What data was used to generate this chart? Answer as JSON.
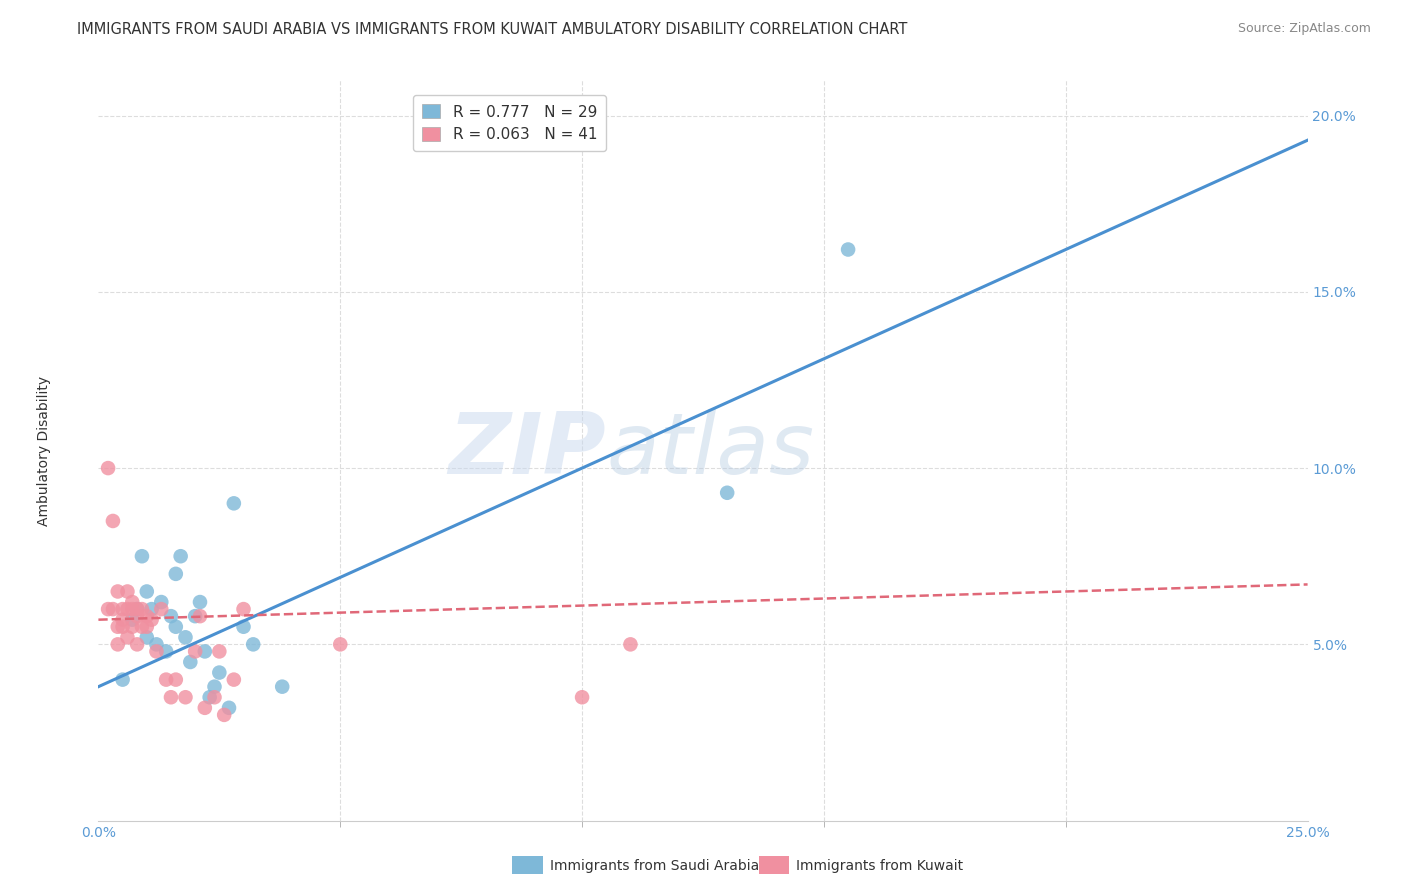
{
  "title": "IMMIGRANTS FROM SAUDI ARABIA VS IMMIGRANTS FROM KUWAIT AMBULATORY DISABILITY CORRELATION CHART",
  "source": "Source: ZipAtlas.com",
  "ylabel": "Ambulatory Disability",
  "xlim": [
    0.0,
    0.25
  ],
  "ylim": [
    0.0,
    0.21
  ],
  "xticks_major": [
    0.0,
    0.25
  ],
  "xticks_minor": [
    0.05,
    0.1,
    0.15,
    0.2
  ],
  "yticks": [
    0.05,
    0.1,
    0.15,
    0.2
  ],
  "xtick_labels_major": [
    "0.0%",
    "25.0%"
  ],
  "ytick_labels": [
    "5.0%",
    "10.0%",
    "15.0%",
    "20.0%"
  ],
  "background_color": "#ffffff",
  "grid_color": "#dddddd",
  "watermark_zip": "ZIP",
  "watermark_atlas": "atlas",
  "legend_entries": [
    {
      "label": "R = 0.777   N = 29",
      "color": "#a8c8e8"
    },
    {
      "label": "R = 0.063   N = 41",
      "color": "#f4a0b4"
    }
  ],
  "saudi_scatter_x": [
    0.005,
    0.007,
    0.008,
    0.009,
    0.01,
    0.01,
    0.011,
    0.012,
    0.013,
    0.014,
    0.015,
    0.016,
    0.016,
    0.017,
    0.018,
    0.019,
    0.02,
    0.021,
    0.022,
    0.023,
    0.024,
    0.025,
    0.027,
    0.028,
    0.03,
    0.032,
    0.038,
    0.13,
    0.155
  ],
  "saudi_scatter_y": [
    0.04,
    0.057,
    0.06,
    0.075,
    0.052,
    0.065,
    0.06,
    0.05,
    0.062,
    0.048,
    0.058,
    0.055,
    0.07,
    0.075,
    0.052,
    0.045,
    0.058,
    0.062,
    0.048,
    0.035,
    0.038,
    0.042,
    0.032,
    0.09,
    0.055,
    0.05,
    0.038,
    0.093,
    0.162
  ],
  "kuwait_scatter_x": [
    0.002,
    0.002,
    0.003,
    0.003,
    0.004,
    0.004,
    0.004,
    0.005,
    0.005,
    0.005,
    0.006,
    0.006,
    0.006,
    0.007,
    0.007,
    0.007,
    0.008,
    0.008,
    0.008,
    0.009,
    0.009,
    0.01,
    0.01,
    0.011,
    0.012,
    0.013,
    0.014,
    0.015,
    0.016,
    0.018,
    0.02,
    0.021,
    0.022,
    0.024,
    0.025,
    0.026,
    0.028,
    0.03,
    0.05,
    0.1,
    0.11
  ],
  "kuwait_scatter_y": [
    0.1,
    0.06,
    0.085,
    0.06,
    0.055,
    0.05,
    0.065,
    0.06,
    0.057,
    0.055,
    0.052,
    0.06,
    0.065,
    0.062,
    0.055,
    0.06,
    0.058,
    0.05,
    0.06,
    0.055,
    0.06,
    0.058,
    0.055,
    0.057,
    0.048,
    0.06,
    0.04,
    0.035,
    0.04,
    0.035,
    0.048,
    0.058,
    0.032,
    0.035,
    0.048,
    0.03,
    0.04,
    0.06,
    0.05,
    0.035,
    0.05
  ],
  "saudi_line_x": [
    0.0,
    0.25
  ],
  "saudi_line_y": [
    0.038,
    0.193
  ],
  "kuwait_line_x": [
    0.0,
    0.25
  ],
  "kuwait_line_y": [
    0.057,
    0.067
  ],
  "saudi_color": "#7eb8d8",
  "kuwait_color": "#f090a0",
  "saudi_line_color": "#4a90d0",
  "kuwait_line_color": "#e06878",
  "title_fontsize": 10.5,
  "axis_label_fontsize": 10,
  "tick_fontsize": 10,
  "legend_fontsize": 11
}
